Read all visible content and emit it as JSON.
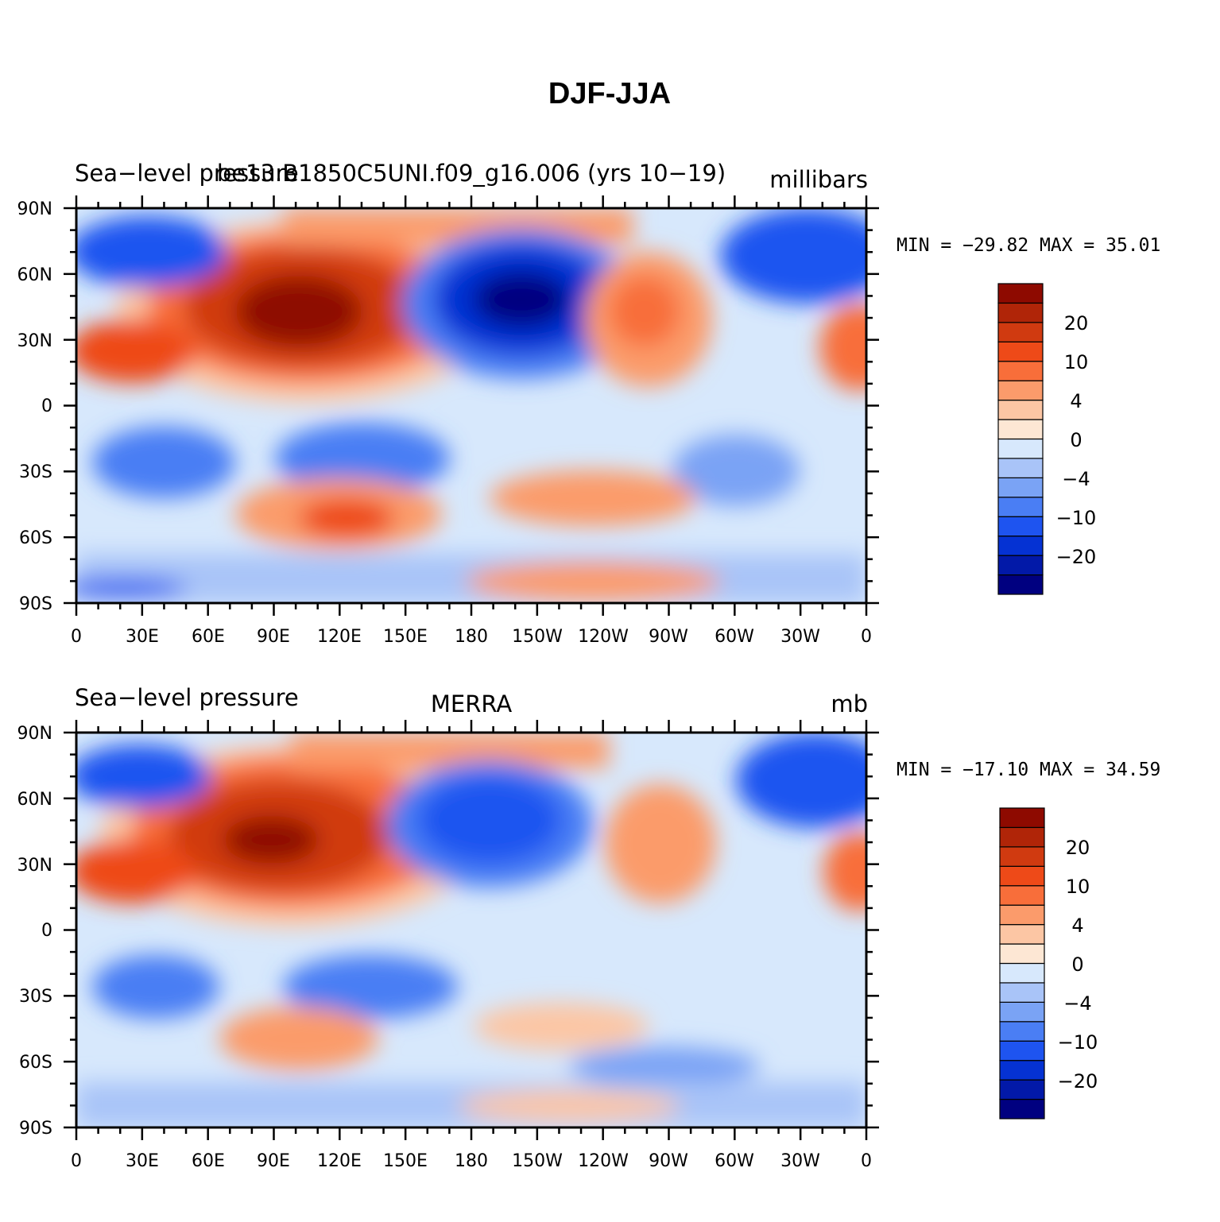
{
  "figure": {
    "title": "DJF-JJA"
  },
  "axes": {
    "lat_labels": [
      "90N",
      "60N",
      "30N",
      "0",
      "30S",
      "60S",
      "90S"
    ],
    "lon_labels": [
      "0",
      "30E",
      "60E",
      "90E",
      "120E",
      "150E",
      "180",
      "150W",
      "120W",
      "90W",
      "60W",
      "30W",
      "0"
    ]
  },
  "colorbar": {
    "colors": [
      "#000080",
      "#0219a8",
      "#0532d3",
      "#1e54f0",
      "#4a7ef4",
      "#7aa3f5",
      "#a9c4f8",
      "#d7e8fc",
      "#fde7d4",
      "#fcc6a4",
      "#fb9b6b",
      "#f86e3a",
      "#ee4a18",
      "#d03a10",
      "#b02508",
      "#8e0a00"
    ],
    "labels": [
      "20",
      "10",
      "4",
      "0",
      "−4",
      "−10",
      "−20"
    ]
  },
  "panels": [
    {
      "left_title": "Sea−level pressure",
      "center_title": "be13.B1850C5UNI.f09_g16.006 (yrs 10−19)",
      "units": "millibars",
      "min_max": "MIN = −29.82 MAX =  35.01"
    },
    {
      "left_title": "Sea−level pressure",
      "center_title": "MERRA",
      "units": "mb",
      "min_max": "MIN = −17.10 MAX =  34.59"
    }
  ],
  "chart_data": [
    {
      "type": "heatmap",
      "title": "be13.B1850C5UNI.f09_g16.006 (yrs 10−19)",
      "variable": "Sea−level pressure",
      "units": "millibars",
      "min": -29.82,
      "max": 35.01,
      "xlim": [
        0,
        360
      ],
      "ylim": [
        -90,
        90
      ],
      "features": [
        {
          "lon": 105,
          "lat": 48,
          "value": 26
        },
        {
          "lon": 205,
          "lat": 46,
          "value": -29
        },
        {
          "lon": 245,
          "lat": 45,
          "value": 8
        },
        {
          "lon": 335,
          "lat": 65,
          "value": -12
        },
        {
          "lon": 25,
          "lat": 65,
          "value": -10
        },
        {
          "lon": 135,
          "lat": -25,
          "value": -9
        },
        {
          "lon": 30,
          "lat": -25,
          "value": -8
        },
        {
          "lon": 300,
          "lat": -28,
          "value": -6
        },
        {
          "lon": 100,
          "lat": -45,
          "value": 10
        },
        {
          "lon": 200,
          "lat": -42,
          "value": 8
        }
      ]
    },
    {
      "type": "heatmap",
      "title": "MERRA",
      "variable": "Sea−level pressure",
      "units": "mb",
      "min": -17.1,
      "max": 34.59,
      "xlim": [
        0,
        360
      ],
      "ylim": [
        -90,
        90
      ],
      "features": [
        {
          "lon": 90,
          "lat": 45,
          "value": 24
        },
        {
          "lon": 195,
          "lat": 48,
          "value": -15
        },
        {
          "lon": 250,
          "lat": 42,
          "value": 6
        },
        {
          "lon": 330,
          "lat": 65,
          "value": -10
        },
        {
          "lon": 30,
          "lat": -25,
          "value": -8
        },
        {
          "lon": 135,
          "lat": -25,
          "value": -8
        },
        {
          "lon": 80,
          "lat": -45,
          "value": 8
        },
        {
          "lon": 190,
          "lat": -40,
          "value": 5
        }
      ]
    }
  ]
}
